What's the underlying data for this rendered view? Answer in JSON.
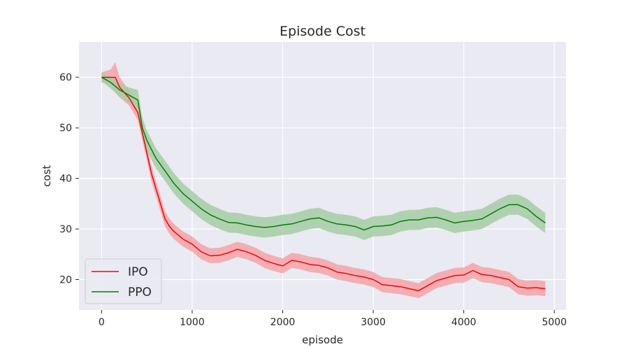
{
  "chart_data": {
    "type": "line",
    "title": "Episode Cost",
    "xlabel": "episode",
    "ylabel": "cost",
    "xlim": [
      -250,
      5130
    ],
    "ylim": [
      14,
      67
    ],
    "xticks": [
      0,
      1000,
      2000,
      3000,
      4000,
      5000
    ],
    "yticks": [
      20,
      30,
      40,
      50,
      60
    ],
    "grid": true,
    "legend": "bottom-left",
    "series": [
      {
        "name": "IPO",
        "color": "#ff0000",
        "band_color": "#f4a3a8",
        "x": [
          0,
          100,
          150,
          200,
          300,
          400,
          450,
          500,
          550,
          600,
          650,
          700,
          750,
          800,
          900,
          1000,
          1100,
          1200,
          1300,
          1400,
          1500,
          1600,
          1700,
          1800,
          1900,
          2000,
          2100,
          2200,
          2300,
          2400,
          2500,
          2600,
          2700,
          2800,
          2900,
          3000,
          3100,
          3200,
          3300,
          3400,
          3500,
          3600,
          3700,
          3800,
          3900,
          4000,
          4100,
          4200,
          4300,
          4400,
          4500,
          4600,
          4700,
          4800,
          4900
        ],
        "y": [
          60,
          60,
          60,
          58,
          56,
          53,
          49,
          45,
          41,
          38,
          35,
          32,
          30.5,
          29.5,
          28,
          27,
          25.5,
          24.7,
          24.8,
          25.3,
          26,
          25.5,
          24.8,
          23.8,
          23.2,
          22.7,
          23.8,
          23.5,
          23,
          22.8,
          22.3,
          21.5,
          21.2,
          20.8,
          20.5,
          20,
          19,
          18.8,
          18.6,
          18.2,
          17.8,
          18.8,
          19.8,
          20.3,
          20.8,
          20.9,
          21.8,
          21,
          20.8,
          20.4,
          20,
          18.6,
          18.3,
          18.4,
          18.2
        ],
        "band": [
          1,
          1.5,
          3,
          2,
          1.5,
          1.5,
          1.5,
          1.5,
          1.5,
          1.5,
          1.5,
          1.5,
          1.5,
          1.5,
          1.5,
          1.5,
          1.5,
          1.5,
          1.5,
          1.5,
          1.5,
          1.5,
          1.5,
          1.5,
          1.5,
          1.5,
          1.5,
          1.5,
          1.5,
          1.5,
          1.5,
          1.5,
          1.5,
          1.5,
          1.5,
          1.5,
          1.5,
          1.5,
          1.5,
          1.5,
          1.5,
          1.5,
          1.5,
          1.5,
          1.5,
          1.5,
          1.5,
          1.5,
          1.5,
          1.5,
          1.5,
          1.5,
          1.5,
          1.5,
          1.5
        ]
      },
      {
        "name": "PPO",
        "color": "#008000",
        "band_color": "#a6cda6",
        "x": [
          0,
          100,
          200,
          300,
          400,
          450,
          500,
          600,
          700,
          800,
          900,
          1000,
          1100,
          1200,
          1300,
          1400,
          1500,
          1600,
          1700,
          1800,
          1900,
          2000,
          2100,
          2200,
          2300,
          2400,
          2500,
          2600,
          2700,
          2800,
          2900,
          3000,
          3100,
          3200,
          3300,
          3400,
          3500,
          3600,
          3700,
          3800,
          3900,
          4000,
          4100,
          4200,
          4300,
          4400,
          4500,
          4600,
          4700,
          4800,
          4900
        ],
        "y": [
          60,
          59,
          57.5,
          56.5,
          55.5,
          50,
          47.5,
          44,
          41.5,
          39,
          37,
          35.5,
          34,
          32.8,
          32,
          31.3,
          31.2,
          30.8,
          30.5,
          30.3,
          30.5,
          30.8,
          31,
          31.5,
          32,
          32.2,
          31.5,
          31,
          30.8,
          30.5,
          29.8,
          30.5,
          30.6,
          30.8,
          31.5,
          31.8,
          31.8,
          32.2,
          32.3,
          31.8,
          31.2,
          31.5,
          31.7,
          32,
          33,
          34,
          34.8,
          34.8,
          34,
          32.5,
          31.2
        ],
        "band": [
          0.8,
          1.2,
          1.3,
          1.5,
          2,
          2,
          2,
          2,
          2,
          2,
          2,
          2,
          2,
          2,
          2,
          2,
          2,
          2,
          2,
          2,
          2,
          2,
          2,
          2,
          2,
          2,
          2,
          2,
          2,
          2,
          2,
          2,
          2,
          2,
          2,
          2,
          2,
          2,
          2,
          2,
          2,
          2,
          2,
          2,
          2,
          2,
          2,
          2,
          2,
          2,
          2
        ]
      }
    ]
  }
}
